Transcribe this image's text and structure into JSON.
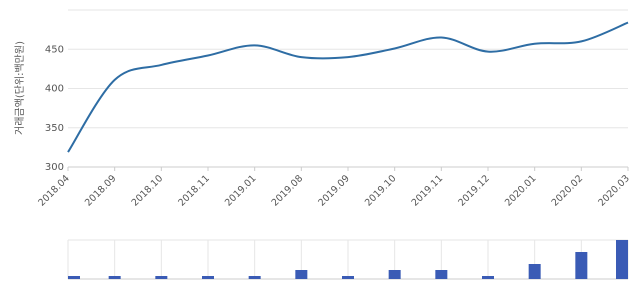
{
  "chart_data": {
    "type": "line",
    "y_label": "거래금액(단위:백만원)",
    "categories": [
      "2018.04",
      "2018.09",
      "2018.10",
      "2018.11",
      "2019.01",
      "2019.08",
      "2019.09",
      "2019.10",
      "2019.11",
      "2019.12",
      "2020.01",
      "2020.02",
      "2020.03"
    ],
    "values": [
      319,
      411,
      430,
      442,
      455,
      440,
      440,
      451,
      465,
      447,
      457,
      460,
      484
    ],
    "volumes": [
      1,
      1,
      1,
      1,
      1,
      3,
      1,
      3,
      3,
      1,
      5,
      9,
      13
    ],
    "color": "#2e6da4",
    "bar_color": "#3a5bb5",
    "ylim": [
      300,
      500
    ],
    "yticks": [
      300,
      350,
      400,
      450
    ],
    "grid": true
  }
}
